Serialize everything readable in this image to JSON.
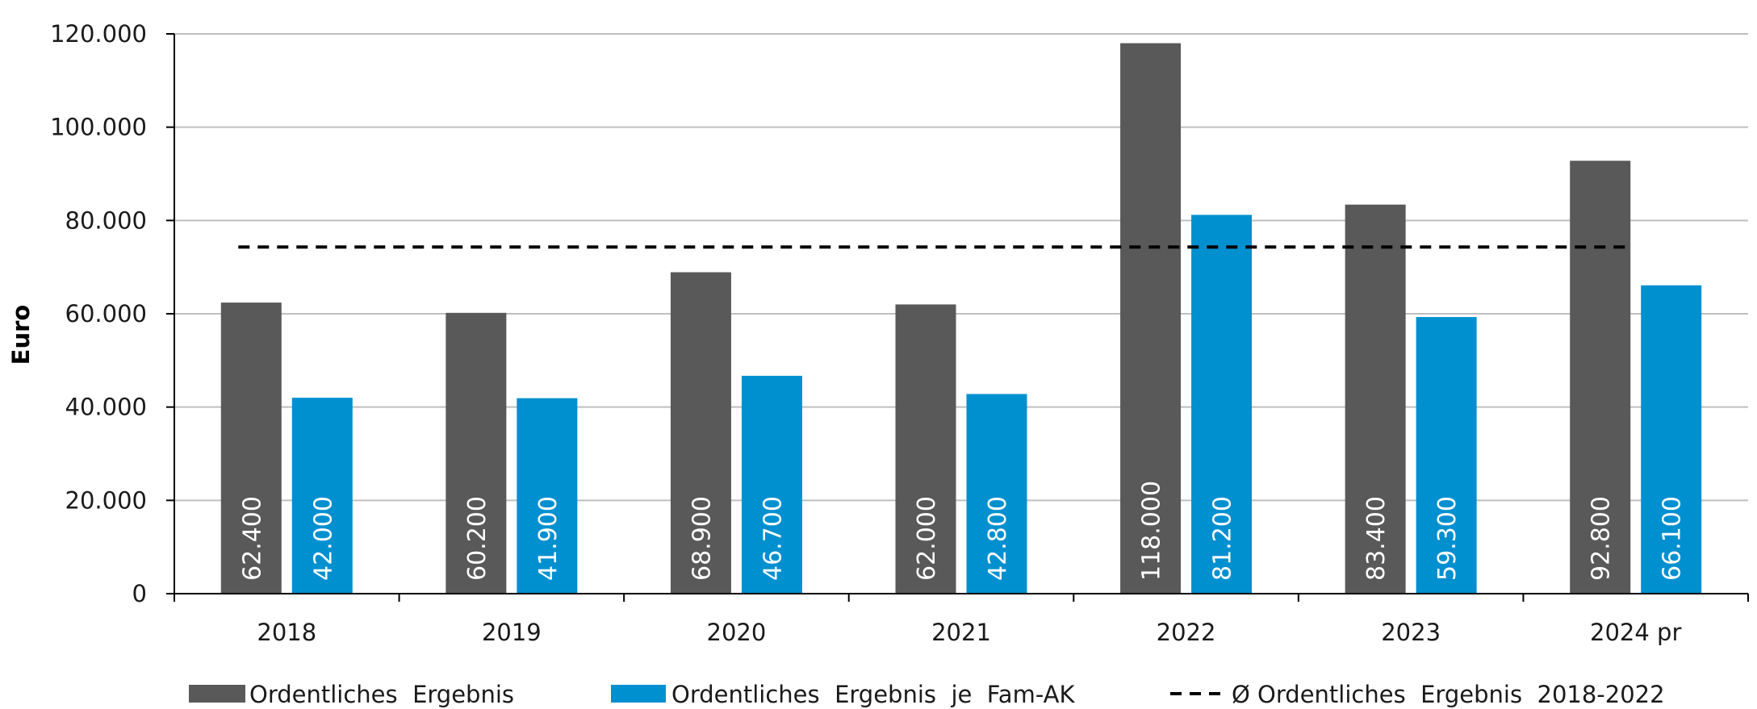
{
  "chart_data": {
    "type": "bar",
    "ylabel": "Euro",
    "xlabel": "",
    "ylim": [
      0,
      120000
    ],
    "yticks": [
      0,
      20000,
      40000,
      60000,
      80000,
      100000,
      120000
    ],
    "ytick_labels": [
      "0",
      "20.000",
      "40.000",
      "60.000",
      "80.000",
      "100.000",
      "120.000"
    ],
    "grid": true,
    "legend_position": "bottom",
    "categories": [
      "2018",
      "2019",
      "2020",
      "2021",
      "2022",
      "2023",
      "2024 pr"
    ],
    "series": [
      {
        "name": "Ordentliches  Ergebnis",
        "color": "#595959",
        "values": [
          62400,
          60200,
          68900,
          62000,
          118000,
          83400,
          92800
        ],
        "labels": [
          "62.400",
          "60.200",
          "68.900",
          "62.000",
          "118.000",
          "83.400",
          "92.800"
        ]
      },
      {
        "name": "Ordentliches  Ergebnis  je  Fam-AK",
        "color": "#0090D0",
        "values": [
          42000,
          41900,
          46700,
          42800,
          81200,
          59300,
          66100
        ],
        "labels": [
          "42.000",
          "41.900",
          "46.700",
          "42.800",
          "81.200",
          "59.300",
          "66.100"
        ]
      }
    ],
    "reference_line": {
      "name": "Ø Ordentliches  Ergebnis  2018-2022",
      "value": 74300,
      "style": "dashed",
      "color": "#000000"
    }
  }
}
